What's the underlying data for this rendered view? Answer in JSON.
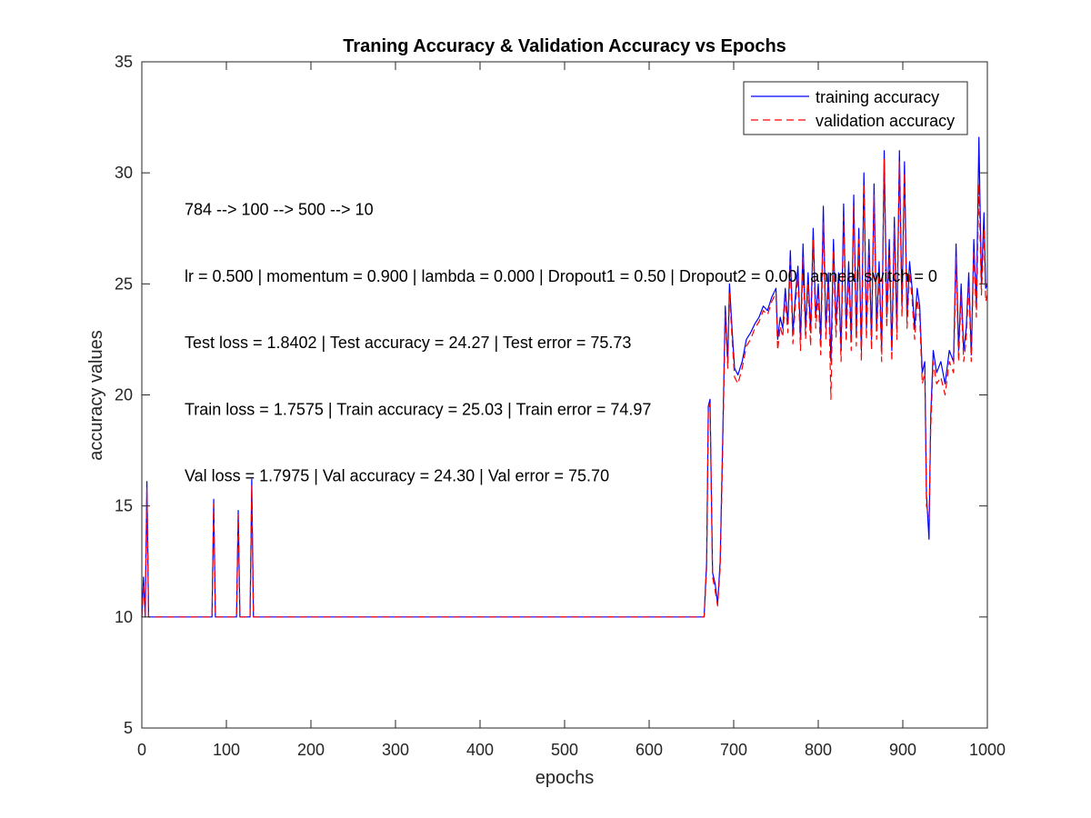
{
  "chart_data": {
    "type": "line",
    "title": "Traning Accuracy & Validation Accuracy vs Epochs",
    "xlabel": "epochs",
    "ylabel": "accuracy values",
    "xlim": [
      0,
      1000
    ],
    "ylim": [
      5,
      35
    ],
    "xticks": [
      0,
      100,
      200,
      300,
      400,
      500,
      600,
      700,
      800,
      900,
      1000
    ],
    "yticks": [
      5,
      10,
      15,
      20,
      25,
      30,
      35
    ],
    "grid": false,
    "legend": {
      "placement": "top-right",
      "entries": [
        "training accuracy",
        "validation accuracy"
      ]
    },
    "annotations": [
      "784 --> 100 --> 500 --> 10",
      "lr = 0.500 | momentum = 0.900 | lambda = 0.000 | Dropout1 = 0.50 | Dropout2 = 0.00 | anneal switch = 0",
      "Test loss = 1.8402 | Test accuracy = 24.27 | Test error = 75.73",
      "Train loss = 1.7575 | Train accuracy = 25.03 | Train error = 74.97",
      "Val loss = 1.7975 | Val accuracy = 24.30 | Val error = 75.70"
    ],
    "series": [
      {
        "name": "training accuracy",
        "color": "#0000ff",
        "dash": "solid",
        "points": [
          [
            0,
            10
          ],
          [
            2,
            11.8
          ],
          [
            4,
            10
          ],
          [
            6,
            16.1
          ],
          [
            8,
            10
          ],
          [
            83,
            10
          ],
          [
            85,
            15.3
          ],
          [
            87,
            10
          ],
          [
            112,
            10
          ],
          [
            114,
            14.8
          ],
          [
            116,
            10
          ],
          [
            128,
            10
          ],
          [
            130,
            16.2
          ],
          [
            132,
            10
          ],
          [
            665,
            10
          ],
          [
            668,
            12.5
          ],
          [
            670,
            19.5
          ],
          [
            672,
            19.8
          ],
          [
            675,
            12
          ],
          [
            678,
            11.5
          ],
          [
            681,
            10.6
          ],
          [
            684,
            12.5
          ],
          [
            687,
            18
          ],
          [
            690,
            24
          ],
          [
            693,
            21.5
          ],
          [
            695,
            25
          ],
          [
            698,
            23
          ],
          [
            701,
            21.2
          ],
          [
            705,
            20.9
          ],
          [
            710,
            21.5
          ],
          [
            715,
            22.5
          ],
          [
            720,
            22.8
          ],
          [
            725,
            23.2
          ],
          [
            730,
            23.5
          ],
          [
            735,
            24
          ],
          [
            740,
            23.8
          ],
          [
            745,
            24.4
          ],
          [
            750,
            24.8
          ],
          [
            752,
            22.5
          ],
          [
            755,
            23.5
          ],
          [
            758,
            23
          ],
          [
            761,
            24.8
          ],
          [
            764,
            23.2
          ],
          [
            767,
            26.5
          ],
          [
            770,
            22.8
          ],
          [
            773,
            24.5
          ],
          [
            776,
            25.8
          ],
          [
            779,
            22.5
          ],
          [
            782,
            26.8
          ],
          [
            785,
            23
          ],
          [
            788,
            25.5
          ],
          [
            791,
            22.8
          ],
          [
            794,
            27.5
          ],
          [
            797,
            23.5
          ],
          [
            800,
            25
          ],
          [
            803,
            22.5
          ],
          [
            806,
            28.5
          ],
          [
            809,
            23
          ],
          [
            812,
            25.5
          ],
          [
            815,
            21.5
          ],
          [
            818,
            27
          ],
          [
            821,
            23.2
          ],
          [
            824,
            25.5
          ],
          [
            827,
            22
          ],
          [
            830,
            28.6
          ],
          [
            833,
            23
          ],
          [
            836,
            26
          ],
          [
            839,
            22.5
          ],
          [
            842,
            29
          ],
          [
            845,
            22.8
          ],
          [
            848,
            27.5
          ],
          [
            851,
            22
          ],
          [
            854,
            30
          ],
          [
            857,
            23
          ],
          [
            860,
            27
          ],
          [
            863,
            22.5
          ],
          [
            866,
            29.5
          ],
          [
            869,
            23
          ],
          [
            872,
            26
          ],
          [
            875,
            22
          ],
          [
            878,
            31
          ],
          [
            881,
            23.5
          ],
          [
            884,
            27
          ],
          [
            887,
            22
          ],
          [
            890,
            28
          ],
          [
            893,
            23
          ],
          [
            896,
            31
          ],
          [
            899,
            24
          ],
          [
            902,
            30.5
          ],
          [
            905,
            23.5
          ],
          [
            908,
            26
          ],
          [
            911,
            24.8
          ],
          [
            914,
            23
          ],
          [
            917,
            24.8
          ],
          [
            920,
            24
          ],
          [
            923,
            21
          ],
          [
            926,
            21.5
          ],
          [
            928,
            15.5
          ],
          [
            931,
            13.5
          ],
          [
            933,
            19
          ],
          [
            936,
            22
          ],
          [
            940,
            21
          ],
          [
            945,
            21.5
          ],
          [
            950,
            20.5
          ],
          [
            955,
            22
          ],
          [
            960,
            21.5
          ],
          [
            963,
            26.8
          ],
          [
            966,
            22
          ],
          [
            969,
            25
          ],
          [
            972,
            22
          ],
          [
            975,
            23
          ],
          [
            978,
            25.5
          ],
          [
            981,
            21.8
          ],
          [
            984,
            27
          ],
          [
            987,
            24
          ],
          [
            990,
            31.6
          ],
          [
            993,
            25
          ],
          [
            996,
            28.2
          ],
          [
            998,
            24.8
          ],
          [
            1000,
            25
          ]
        ]
      },
      {
        "name": "validation accuracy",
        "color": "#ff0000",
        "dash": "dashed",
        "points": [
          [
            0,
            10
          ],
          [
            2,
            11.5
          ],
          [
            4,
            10
          ],
          [
            6,
            15.8
          ],
          [
            8,
            10
          ],
          [
            83,
            10
          ],
          [
            85,
            15.1
          ],
          [
            87,
            10
          ],
          [
            112,
            10
          ],
          [
            114,
            14.6
          ],
          [
            116,
            10
          ],
          [
            128,
            10
          ],
          [
            130,
            15.9
          ],
          [
            132,
            10
          ],
          [
            665,
            10
          ],
          [
            668,
            12.2
          ],
          [
            670,
            19.2
          ],
          [
            672,
            19.6
          ],
          [
            675,
            11.8
          ],
          [
            678,
            11.2
          ],
          [
            681,
            10.5
          ],
          [
            684,
            12.2
          ],
          [
            687,
            17.5
          ],
          [
            690,
            23.6
          ],
          [
            693,
            21.2
          ],
          [
            695,
            24.6
          ],
          [
            698,
            22.6
          ],
          [
            701,
            20.8
          ],
          [
            705,
            20.5
          ],
          [
            710,
            21.2
          ],
          [
            715,
            22.2
          ],
          [
            720,
            22.5
          ],
          [
            725,
            23
          ],
          [
            730,
            23.3
          ],
          [
            735,
            23.8
          ],
          [
            740,
            23.6
          ],
          [
            745,
            24.2
          ],
          [
            750,
            24.6
          ],
          [
            752,
            22
          ],
          [
            755,
            23.1
          ],
          [
            758,
            22.6
          ],
          [
            761,
            24.4
          ],
          [
            764,
            22.8
          ],
          [
            767,
            26
          ],
          [
            770,
            22.3
          ],
          [
            773,
            24.1
          ],
          [
            776,
            25.3
          ],
          [
            779,
            22
          ],
          [
            782,
            26.2
          ],
          [
            785,
            22.5
          ],
          [
            788,
            25
          ],
          [
            791,
            22.2
          ],
          [
            794,
            27
          ],
          [
            797,
            23
          ],
          [
            800,
            24.5
          ],
          [
            803,
            21.8
          ],
          [
            806,
            27.8
          ],
          [
            809,
            22.5
          ],
          [
            812,
            25
          ],
          [
            815,
            19.8
          ],
          [
            818,
            26.5
          ],
          [
            821,
            22.6
          ],
          [
            824,
            25
          ],
          [
            827,
            21.5
          ],
          [
            830,
            28
          ],
          [
            833,
            22.4
          ],
          [
            836,
            25.5
          ],
          [
            839,
            22
          ],
          [
            842,
            28.5
          ],
          [
            845,
            22.2
          ],
          [
            848,
            27
          ],
          [
            851,
            21.5
          ],
          [
            854,
            29.5
          ],
          [
            857,
            22.5
          ],
          [
            860,
            26.5
          ],
          [
            863,
            22
          ],
          [
            866,
            29
          ],
          [
            869,
            22.5
          ],
          [
            872,
            25.5
          ],
          [
            875,
            21.5
          ],
          [
            878,
            30.6
          ],
          [
            881,
            23
          ],
          [
            884,
            26.5
          ],
          [
            887,
            21.5
          ],
          [
            890,
            27.5
          ],
          [
            893,
            22.5
          ],
          [
            896,
            30.5
          ],
          [
            899,
            23.5
          ],
          [
            902,
            30
          ],
          [
            905,
            23
          ],
          [
            908,
            25.5
          ],
          [
            911,
            24.3
          ],
          [
            914,
            22.5
          ],
          [
            917,
            24.3
          ],
          [
            920,
            23.5
          ],
          [
            923,
            20.5
          ],
          [
            926,
            21
          ],
          [
            928,
            15
          ],
          [
            931,
            14.5
          ],
          [
            933,
            18.5
          ],
          [
            936,
            21.5
          ],
          [
            940,
            20.5
          ],
          [
            945,
            20.8
          ],
          [
            950,
            20
          ],
          [
            955,
            21.5
          ],
          [
            960,
            21
          ],
          [
            963,
            26.2
          ],
          [
            966,
            21.5
          ],
          [
            969,
            24.5
          ],
          [
            972,
            21.5
          ],
          [
            975,
            22.5
          ],
          [
            978,
            25
          ],
          [
            981,
            21.5
          ],
          [
            984,
            26.5
          ],
          [
            987,
            23.5
          ],
          [
            990,
            29.5
          ],
          [
            993,
            24.5
          ],
          [
            996,
            27.5
          ],
          [
            998,
            24.2
          ],
          [
            1000,
            24.5
          ]
        ]
      }
    ]
  }
}
